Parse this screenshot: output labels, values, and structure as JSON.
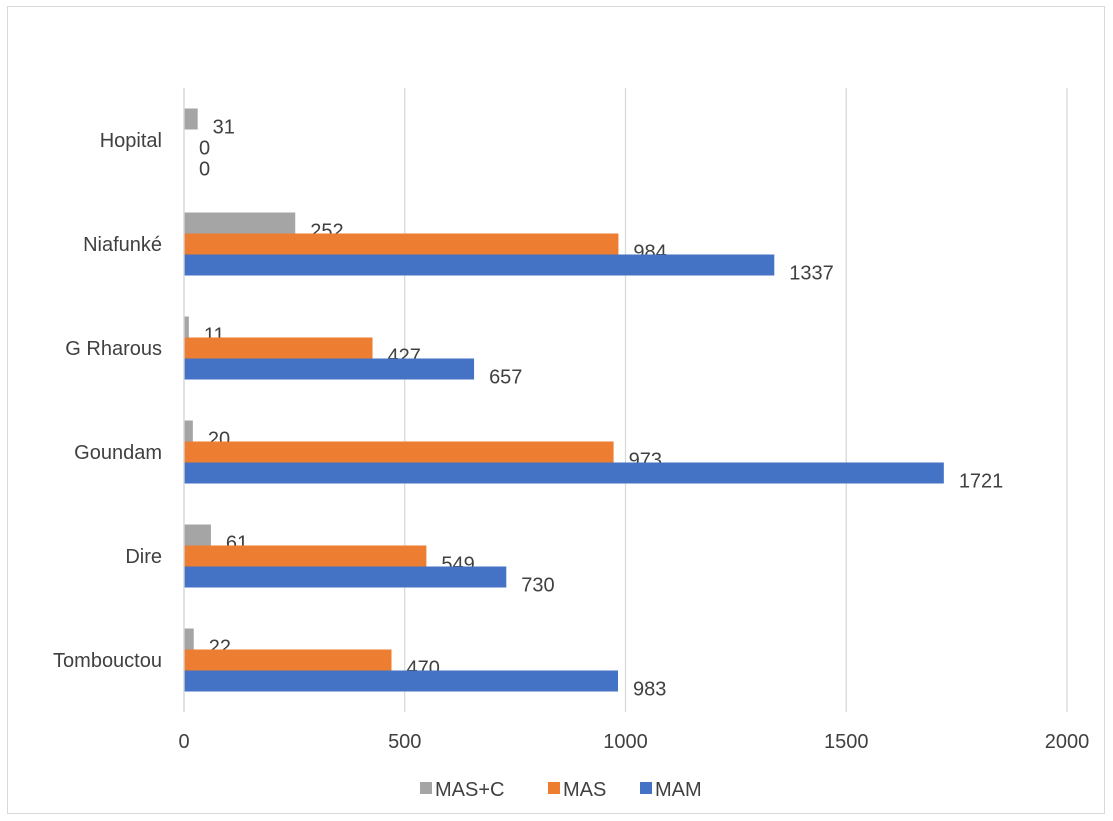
{
  "chart_data": {
    "type": "bar",
    "orientation": "horizontal",
    "title": "",
    "categories": [
      "Tombouctou",
      "Dire",
      "Goundam",
      "G Rharous",
      "Niafunké",
      "Hopital"
    ],
    "series": [
      {
        "name": "MAM",
        "color": "#4472C4",
        "values": [
          983,
          730,
          1721,
          657,
          1337,
          0
        ]
      },
      {
        "name": "MAS",
        "color": "#ED7D31",
        "values": [
          470,
          549,
          973,
          427,
          984,
          0
        ]
      },
      {
        "name": "MAS+C",
        "color": "#A5A5A5",
        "values": [
          22,
          61,
          20,
          11,
          252,
          31
        ]
      }
    ],
    "legend_order": [
      "MAS+C",
      "MAS",
      "MAM"
    ],
    "xlim": [
      0,
      2000
    ],
    "xticks": [
      "0",
      "500",
      "1000",
      "1500",
      "2000"
    ],
    "grid": "vertical",
    "legend_position": "bottom"
  }
}
